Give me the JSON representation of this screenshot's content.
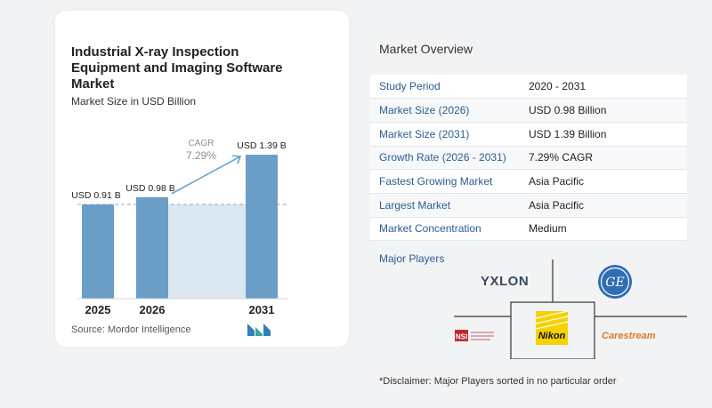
{
  "chart_data": {
    "type": "bar",
    "title": "Industrial X-ray Inspection Equipment and Imaging Software Market",
    "subtitle": "Market Size in USD Billion",
    "categories": [
      "2025",
      "2026",
      "2031"
    ],
    "values": [
      0.91,
      0.98,
      1.39
    ],
    "data_labels": [
      "USD 0.91 B",
      "USD 0.98 B",
      "USD 1.39 B"
    ],
    "cagr_label": "CAGR",
    "cagr_value": "7.29%",
    "ylim": [
      0,
      1.5
    ],
    "colors": {
      "bar": "#6b9ec6",
      "bar_dark": "#4f84b0",
      "band": "#dbe7f1",
      "arrow": "#5f9fce",
      "cagr_text": "#8a8f96"
    }
  },
  "source": "Source:  Mordor Intelligence",
  "overview": {
    "title": "Market Overview",
    "rows": [
      {
        "key": "Study Period",
        "value": "2020 - 2031"
      },
      {
        "key": "Market Size (2026)",
        "value": "USD 0.98 Billion"
      },
      {
        "key": "Market Size (2031)",
        "value": "USD 1.39 Billion"
      },
      {
        "key": "Growth Rate (2026 - 2031)",
        "value": "7.29% CAGR"
      },
      {
        "key": "Fastest Growing Market",
        "value": "Asia Pacific"
      },
      {
        "key": "Largest Market",
        "value": "Asia Pacific"
      },
      {
        "key": "Market Concentration",
        "value": "Medium"
      }
    ]
  },
  "players": {
    "title": "Major Players",
    "yxlon": "YXLON",
    "ge": "GE",
    "nikon": "Nikon",
    "carestream": "Carestream",
    "nsi": "NSI",
    "nsi_small": "NORTH STAR IMAGING\nAN ITW COMPANY"
  },
  "disclaimer": "*Disclaimer: Major Players sorted in no particular order"
}
